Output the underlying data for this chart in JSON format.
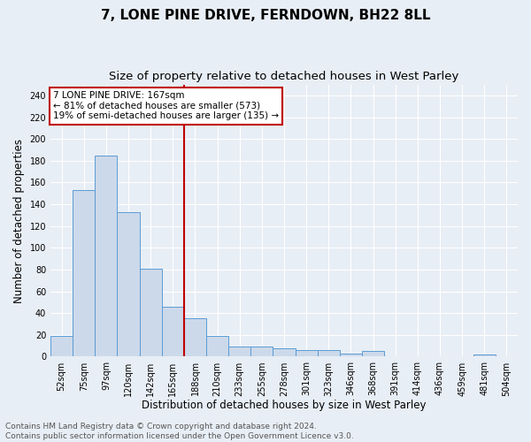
{
  "title": "7, LONE PINE DRIVE, FERNDOWN, BH22 8LL",
  "subtitle": "Size of property relative to detached houses in West Parley",
  "xlabel": "Distribution of detached houses by size in West Parley",
  "ylabel": "Number of detached properties",
  "footnote": "Contains HM Land Registry data © Crown copyright and database right 2024.\nContains public sector information licensed under the Open Government Licence v3.0.",
  "bar_labels": [
    "52sqm",
    "75sqm",
    "97sqm",
    "120sqm",
    "142sqm",
    "165sqm",
    "188sqm",
    "210sqm",
    "233sqm",
    "255sqm",
    "278sqm",
    "301sqm",
    "323sqm",
    "346sqm",
    "368sqm",
    "391sqm",
    "414sqm",
    "436sqm",
    "459sqm",
    "481sqm",
    "504sqm"
  ],
  "bar_values": [
    19,
    153,
    185,
    133,
    81,
    46,
    35,
    19,
    9,
    9,
    8,
    6,
    6,
    3,
    5,
    0,
    0,
    0,
    0,
    2,
    0
  ],
  "bar_color": "#ccd9ea",
  "bar_edge_color": "#5b9bd5",
  "vline_x": 5.5,
  "vline_color": "#c00000",
  "annotation_text": "7 LONE PINE DRIVE: 167sqm\n← 81% of detached houses are smaller (573)\n19% of semi-detached houses are larger (135) →",
  "annotation_box_color": "#ffffff",
  "annotation_box_edge_color": "#c00000",
  "ylim": [
    0,
    250
  ],
  "yticks": [
    0,
    20,
    40,
    60,
    80,
    100,
    120,
    140,
    160,
    180,
    200,
    220,
    240
  ],
  "bg_color": "#e8eef5",
  "grid_color": "#ffffff",
  "title_fontsize": 11,
  "subtitle_fontsize": 9.5,
  "axis_label_fontsize": 8.5,
  "tick_fontsize": 7,
  "footnote_fontsize": 6.5,
  "annotation_fontsize": 7.5
}
